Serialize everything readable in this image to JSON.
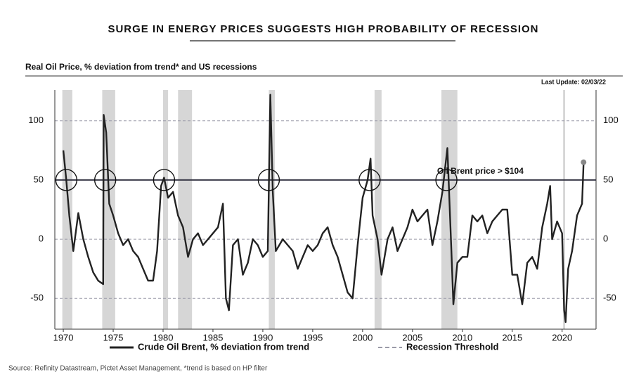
{
  "chart_data": {
    "type": "line",
    "title": "SURGE IN ENERGY PRICES SUGGESTS HIGH PROBABILITY OF RECESSION",
    "subtitle": "Real Oil Price, % deviation from trend* and US recessions",
    "last_update": "Last Update: 02/03/22",
    "annotation": "Oil Brent price > $104",
    "source": "Source: Refinity Datastream, Pictet Asset Management, *trend is based on HP filter",
    "xlim": [
      1969.15,
      2023.4
    ],
    "xticks": [
      1970,
      1975,
      1980,
      1985,
      1990,
      1995,
      2000,
      2005,
      2010,
      2015,
      2020
    ],
    "ylim": [
      -76,
      126
    ],
    "yticks": [
      -50,
      0,
      50,
      100
    ],
    "grid": true,
    "threshold": {
      "name": "Recession Threshold",
      "value": 50,
      "color": "#9a9aa8"
    },
    "recessions": [
      [
        1969.9,
        1970.9
      ],
      [
        1973.9,
        1975.2
      ],
      [
        1980.0,
        1980.5
      ],
      [
        1981.5,
        1982.9
      ],
      [
        1990.6,
        1991.2
      ],
      [
        2001.2,
        2001.9
      ],
      [
        2007.9,
        2009.5
      ],
      [
        2020.1,
        2020.3
      ]
    ],
    "recession_color": "#d6d6d6",
    "highlights": [
      1970.3,
      1974.2,
      1980.1,
      1990.6,
      2000.7,
      2008.4
    ],
    "series": [
      {
        "name": "Crude Oil Brent, % deviation from trend",
        "color": "#222222",
        "x": [
          1970,
          1970.3,
          1970.6,
          1971,
          1971.5,
          1972,
          1972.5,
          1973,
          1973.5,
          1974,
          1974.05,
          1974.3,
          1974.6,
          1975,
          1975.5,
          1976,
          1976.5,
          1977,
          1977.5,
          1978,
          1978.5,
          1979,
          1979.4,
          1979.8,
          1980.1,
          1980.5,
          1981,
          1981.5,
          1982,
          1982.5,
          1983,
          1983.5,
          1984,
          1984.5,
          1985,
          1985.5,
          1986,
          1986.3,
          1986.6,
          1987,
          1987.5,
          1988,
          1988.5,
          1989,
          1989.5,
          1990,
          1990.5,
          1990.75,
          1991,
          1991.3,
          1992,
          1992.5,
          1993,
          1993.5,
          1994,
          1994.5,
          1995,
          1995.5,
          1996,
          1996.5,
          1997,
          1997.5,
          1998,
          1998.5,
          1999,
          1999.5,
          2000,
          2000.5,
          2000.8,
          2001,
          2001.5,
          2001.9,
          2002.5,
          2003,
          2003.5,
          2004,
          2004.5,
          2005,
          2005.5,
          2006,
          2006.5,
          2007,
          2007.5,
          2008,
          2008.5,
          2008.9,
          2009.1,
          2009.5,
          2010,
          2010.5,
          2011,
          2011.5,
          2012,
          2012.5,
          2013,
          2013.5,
          2014,
          2014.5,
          2015,
          2015.5,
          2016,
          2016.5,
          2017,
          2017.5,
          2018,
          2018.5,
          2018.8,
          2019,
          2019.5,
          2020,
          2020.2,
          2020.35,
          2020.6,
          2021,
          2021.5,
          2022,
          2022.15
        ],
        "values": [
          75,
          50,
          20,
          -10,
          22,
          0,
          -15,
          -28,
          -35,
          -38,
          105,
          90,
          30,
          20,
          5,
          -5,
          0,
          -10,
          -15,
          -25,
          -35,
          -35,
          -10,
          45,
          52,
          35,
          40,
          20,
          10,
          -15,
          0,
          5,
          -5,
          0,
          5,
          10,
          30,
          -50,
          -60,
          -5,
          0,
          -30,
          -20,
          0,
          -5,
          -15,
          -10,
          122,
          40,
          -10,
          0,
          -5,
          -10,
          -25,
          -15,
          -5,
          -10,
          -5,
          5,
          10,
          -5,
          -15,
          -30,
          -45,
          -50,
          -5,
          35,
          50,
          68,
          20,
          0,
          -30,
          0,
          10,
          -10,
          0,
          10,
          25,
          15,
          20,
          25,
          -5,
          15,
          40,
          77,
          -10,
          -55,
          -20,
          -15,
          -15,
          20,
          15,
          20,
          5,
          15,
          20,
          25,
          25,
          -30,
          -30,
          -55,
          -20,
          -15,
          -25,
          10,
          30,
          45,
          0,
          15,
          5,
          -60,
          -70,
          -25,
          -10,
          20,
          30,
          65
        ]
      }
    ]
  }
}
